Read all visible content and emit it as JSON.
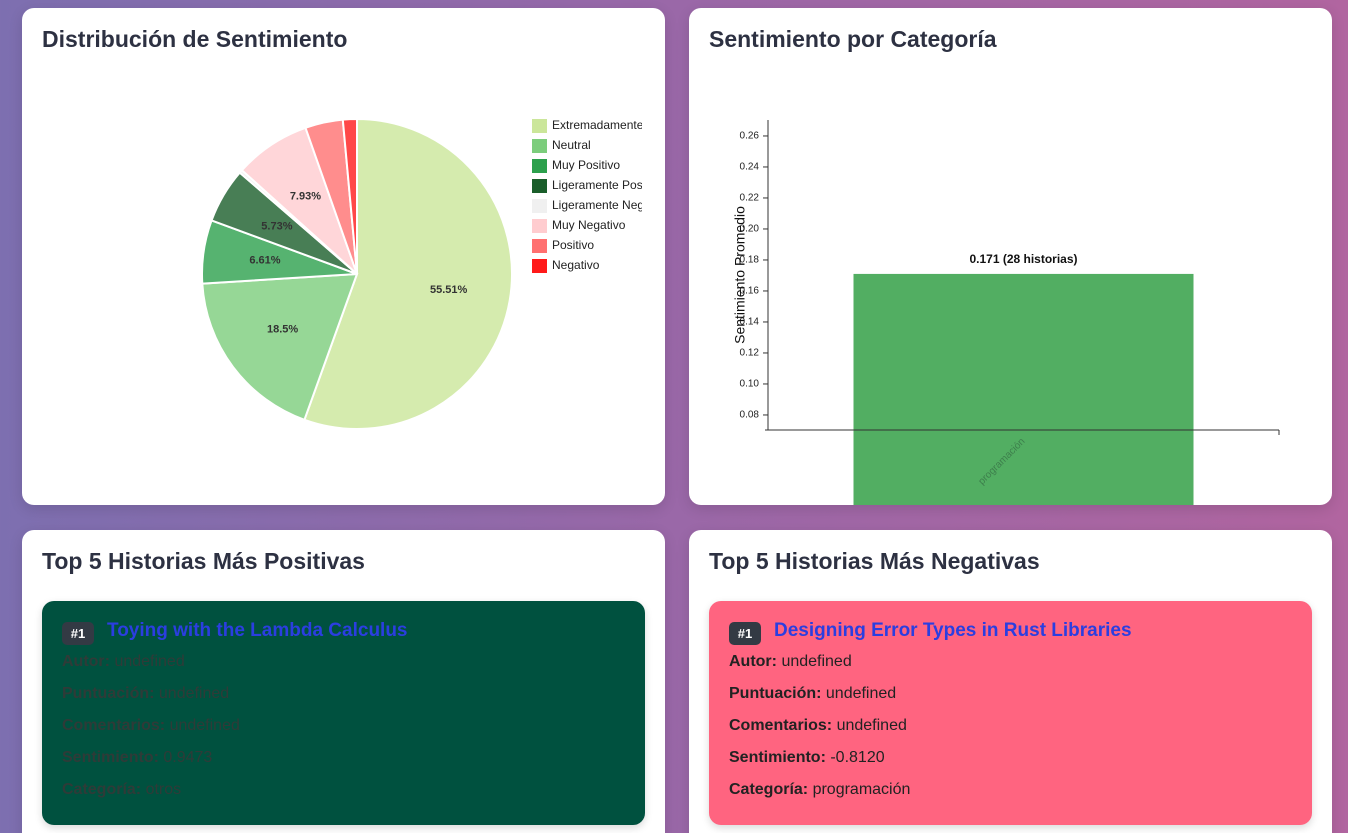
{
  "chart_data": [
    {
      "type": "pie",
      "title": "Distribución de Sentimiento",
      "categories": [
        "Extremadamente",
        "Neutral",
        "Muy Positivo",
        "Ligeramente Pos",
        "Ligeramente Neg",
        "Muy Negativo",
        "Positivo",
        "Negativo"
      ],
      "values": [
        55.51,
        18.5,
        6.61,
        5.73,
        0.33,
        7.93,
        3.93,
        1.46
      ],
      "value_labels": [
        "55.51%",
        "18.5%",
        "6.61%",
        "5.73%",
        null,
        "7.93%",
        null,
        null
      ],
      "colors": [
        "#cbe69a",
        "#7ccd7c",
        "#2ca04c",
        "#1a5e2a",
        "#f0f0f0",
        "#ffcccf",
        "#ff7070",
        "#ff1a1a"
      ]
    },
    {
      "type": "bar",
      "title": "Sentimiento por Categoría",
      "y_label": "Sentimiento Promedio",
      "categories": [
        "programación"
      ],
      "values": [
        0.171
      ],
      "value_labels": [
        "0.171 (28 historias)"
      ],
      "color": "#52ae62",
      "ylim": [
        0.0703,
        0.2703
      ],
      "yticks": [
        0.08,
        {
          "value": 0.1,
          "label": "0.10"
        },
        0.12,
        0.14,
        0.16,
        0.18,
        {
          "value": 0.2,
          "label": "0.20"
        },
        0.22,
        0.24,
        0.26
      ]
    }
  ],
  "top_positive": {
    "title": "Top 5 Historias Más Positivas",
    "stories": [
      {
        "rank": "#1",
        "title": "Toying with the Lambda Calculus",
        "fields": [
          {
            "label": "Autor:",
            "value": "undefined"
          },
          {
            "label": "Puntuación:",
            "value": "undefined"
          },
          {
            "label": "Comentarios:",
            "value": "undefined"
          },
          {
            "label": "Sentimiento:",
            "value": "0.9473"
          },
          {
            "label": "Categoría:",
            "value": "otros"
          }
        ]
      }
    ]
  },
  "top_negative": {
    "title": "Top 5 Historias Más Negativas",
    "stories": [
      {
        "rank": "#1",
        "title": "Designing Error Types in Rust Libraries",
        "fields": [
          {
            "label": "Autor:",
            "value": "undefined"
          },
          {
            "label": "Puntuación:",
            "value": "undefined"
          },
          {
            "label": "Comentarios:",
            "value": "undefined"
          },
          {
            "label": "Sentimiento:",
            "value": "-0.8120"
          },
          {
            "label": "Categoría:",
            "value": "programación"
          }
        ]
      }
    ]
  }
}
